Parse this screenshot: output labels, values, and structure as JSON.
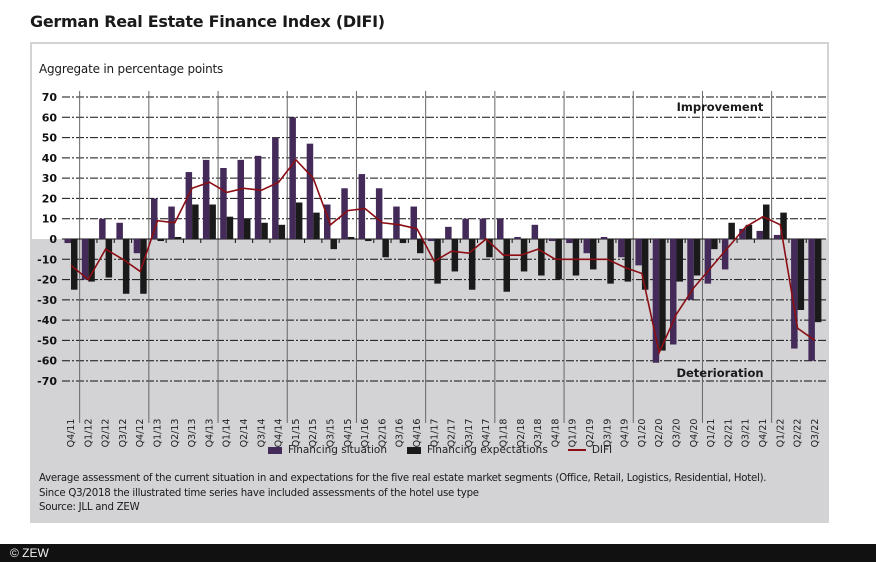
{
  "title": "German Real Estate Finance Index (DIFI)",
  "colors": {
    "situation": "#432a58",
    "expectations": "#1a1a1a",
    "difi": "#8b0e14",
    "negative_bg": "#d3d3d6",
    "positive_bg": "#ffffff"
  },
  "chart_data": {
    "type": "bar",
    "title": "German Real Estate Finance Index (DIFI)",
    "subtitle": "Aggregate in percentage points",
    "xlabel": "",
    "ylabel": "Aggregate in percentage points",
    "ylim": [
      -70,
      70
    ],
    "yticks": [
      70,
      60,
      50,
      40,
      30,
      20,
      10,
      0,
      -10,
      -20,
      -30,
      -40,
      -50,
      -60,
      -70
    ],
    "grid": true,
    "legend_position": "bottom",
    "annotations": {
      "top": "Improvement",
      "bottom": "Deterioration"
    },
    "categories": [
      "Q4/11",
      "Q1/12",
      "Q2/12",
      "Q3/12",
      "Q4/12",
      "Q1/13",
      "Q2/13",
      "Q3/13",
      "Q4/13",
      "Q1/14",
      "Q2/14",
      "Q3/14",
      "Q4/14",
      "Q1/15",
      "Q2/15",
      "Q3/15",
      "Q4/15",
      "Q1/16",
      "Q2/16",
      "Q3/16",
      "Q4/16",
      "Q1/17",
      "Q2/17",
      "Q3/17",
      "Q4/17",
      "Q1/18",
      "Q2/18",
      "Q3/18",
      "Q4/18",
      "Q1/19",
      "Q2/19",
      "Q3/19",
      "Q4/19",
      "Q1/20",
      "Q2/20",
      "Q3/20",
      "Q4/20",
      "Q1/21",
      "Q2/21",
      "Q3/21",
      "Q4/21",
      "Q1/22",
      "Q2/22",
      "Q3/22"
    ],
    "series": [
      {
        "name": "Financing situation",
        "type": "bar",
        "values": [
          -2,
          -20,
          10,
          8,
          -7,
          20,
          16,
          33,
          39,
          35,
          39,
          41,
          50,
          60,
          47,
          17,
          25,
          32,
          25,
          16,
          16,
          -1,
          6,
          10,
          10,
          10,
          1,
          7,
          -1,
          -2,
          -7,
          1,
          -9,
          -13,
          -61,
          -52,
          -30,
          -22,
          -15,
          5,
          4,
          2,
          -54,
          -60
        ]
      },
      {
        "name": "Financing expectations",
        "type": "bar",
        "values": [
          -25,
          -21,
          -19,
          -27,
          -27,
          -1,
          1,
          17,
          17,
          11,
          10,
          8,
          7,
          18,
          13,
          -5,
          1,
          -1,
          -9,
          -2,
          -7,
          -22,
          -16,
          -25,
          -9,
          -26,
          -16,
          -18,
          -20,
          -18,
          -15,
          -22,
          -21,
          -25,
          -55,
          -21,
          -18,
          -5,
          8,
          7,
          17,
          13,
          -35,
          -41
        ]
      },
      {
        "name": "DIFI",
        "type": "line",
        "values": [
          -13,
          -20,
          -5,
          -10,
          -16,
          9,
          8,
          25,
          28,
          23,
          25,
          24,
          28,
          39,
          30,
          7,
          14,
          15,
          8,
          7,
          5,
          -11,
          -6,
          -7,
          0,
          -8,
          -8,
          -5,
          -10,
          -10,
          -10,
          -10,
          -14,
          -17,
          -56,
          -37,
          -24,
          -14,
          -4,
          6,
          11,
          7,
          -44,
          -50
        ]
      }
    ]
  },
  "legend": {
    "situation": "Financing situation",
    "expectations": "Financing expectations",
    "difi": "DIFI"
  },
  "notes": {
    "line1": "Average assessment of the current situation in and expectations for the five real estate market segments (Office, Retail, Logistics, Residential, Hotel).",
    "line2": "Since Q3/2018 the illustrated time series have included assessments of the hotel use type",
    "line3": "Source: JLL and ZEW"
  },
  "footer": "© ZEW"
}
